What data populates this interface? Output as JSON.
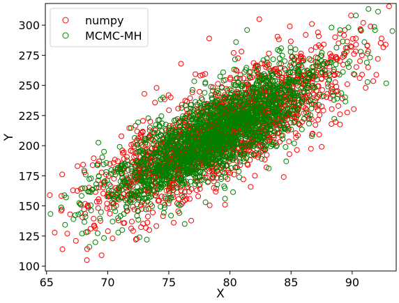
{
  "chart_data": {
    "type": "scatter",
    "title": "",
    "xlabel": "X",
    "ylabel": "Y",
    "xlim": [
      64.9,
      93.6
    ],
    "ylim": [
      96,
      318
    ],
    "xticks": [
      65,
      70,
      75,
      80,
      85,
      90
    ],
    "yticks": [
      100,
      125,
      150,
      175,
      200,
      225,
      250,
      275,
      300
    ],
    "grid": false,
    "legend_position": "upper left",
    "marker": "open-circle",
    "series": [
      {
        "name": "numpy",
        "color": "#ff0000",
        "distribution": {
          "kind": "bivariate-normal",
          "n_points": 2000,
          "x_mean": 79.1,
          "y_mean": 210.5,
          "x_std": 4.8,
          "y_std": 31.0,
          "correlation": 0.8
        },
        "points": [
          [
            66.3,
            114
          ],
          [
            66.2,
            146
          ],
          [
            67.4,
            121
          ],
          [
            66.7,
            127
          ],
          [
            67.8,
            164
          ],
          [
            68.3,
            105
          ],
          [
            68.1,
            178
          ],
          [
            68.9,
            133
          ],
          [
            69.5,
            109
          ],
          [
            69.3,
            187
          ],
          [
            70.4,
            123
          ],
          [
            71.2,
            196
          ],
          [
            72.3,
            122
          ],
          [
            73.0,
            243
          ],
          [
            73.4,
            130
          ],
          [
            74.0,
            248
          ],
          [
            75.4,
            136
          ],
          [
            76.0,
            268
          ],
          [
            77.4,
            158
          ],
          [
            78.3,
            289
          ],
          [
            79.6,
            151
          ],
          [
            80.3,
            277
          ],
          [
            81.1,
            172
          ],
          [
            82.4,
            305
          ],
          [
            84.4,
            174
          ],
          [
            84.9,
            299
          ],
          [
            86.2,
            292
          ],
          [
            86.7,
            301
          ],
          [
            87.2,
            294
          ],
          [
            87.5,
            199
          ],
          [
            88.3,
            218
          ],
          [
            88.6,
            290
          ],
          [
            89.0,
            226
          ],
          [
            89.4,
            296
          ],
          [
            89.6,
            251
          ],
          [
            89.9,
            308
          ],
          [
            90.2,
            259
          ],
          [
            90.3,
            289
          ],
          [
            90.7,
            296
          ],
          [
            90.9,
            302
          ],
          [
            90.8,
            275
          ],
          [
            91.5,
            299
          ],
          [
            91.1,
            248
          ],
          [
            92.1,
            272
          ],
          [
            92.4,
            289
          ]
        ]
      },
      {
        "name": "MCMC-MH",
        "color": "#008000",
        "distribution": {
          "kind": "bivariate-normal",
          "n_points": 2000,
          "x_mean": 79.0,
          "y_mean": 210.0,
          "x_std": 4.4,
          "y_std": 28.5,
          "correlation": 0.8
        },
        "points": [
          [
            66.6,
            157
          ],
          [
            67.2,
            139
          ],
          [
            67.6,
            143
          ],
          [
            67.8,
            151
          ],
          [
            67.9,
            127
          ],
          [
            68.2,
            176
          ],
          [
            68.5,
            116
          ],
          [
            69.7,
            195
          ],
          [
            70.4,
            137
          ],
          [
            72.6,
            124
          ],
          [
            73.2,
            122
          ],
          [
            75.8,
            151
          ],
          [
            76.3,
            135
          ],
          [
            78.0,
            153
          ],
          [
            79.6,
            156
          ],
          [
            80.5,
            286
          ],
          [
            81.4,
            296
          ],
          [
            82.6,
            189
          ],
          [
            84.6,
            187
          ],
          [
            86.7,
            208
          ],
          [
            88.1,
            254
          ],
          [
            88.5,
            238
          ],
          [
            89.0,
            296
          ],
          [
            89.4,
            276
          ],
          [
            90.3,
            308
          ],
          [
            90.7,
            278
          ],
          [
            91.0,
            286
          ],
          [
            91.2,
            269
          ]
        ]
      }
    ]
  }
}
